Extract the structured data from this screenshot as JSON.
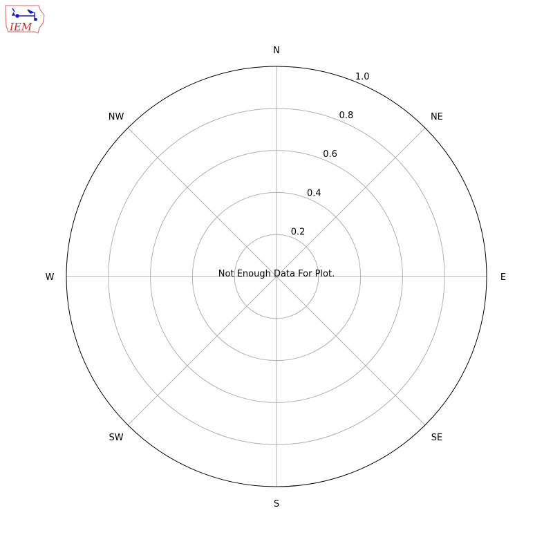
{
  "logo": {
    "text": "IEM",
    "border_color": "#e06060",
    "text_color": "#d02020",
    "icon_color": "#1a1acc"
  },
  "chart_data": {
    "type": "polar",
    "title": "",
    "message": "Not Enough Data For Plot.",
    "theta_direction": "clockwise",
    "theta_zero": "north",
    "direction_labels": [
      {
        "label": "N",
        "deg": 0
      },
      {
        "label": "NE",
        "deg": 45
      },
      {
        "label": "E",
        "deg": 90
      },
      {
        "label": "SE",
        "deg": 135
      },
      {
        "label": "S",
        "deg": 180
      },
      {
        "label": "SW",
        "deg": 225
      },
      {
        "label": "W",
        "deg": 270
      },
      {
        "label": "NW",
        "deg": 315
      }
    ],
    "rlim": [
      0,
      1.0
    ],
    "rticks": [
      0.2,
      0.4,
      0.6,
      0.8,
      1.0
    ],
    "rtick_labels": [
      "0.2",
      "0.4",
      "0.6",
      "0.8",
      "1.0"
    ],
    "grid": true,
    "grid_color": "#b0b0b0",
    "series": []
  }
}
